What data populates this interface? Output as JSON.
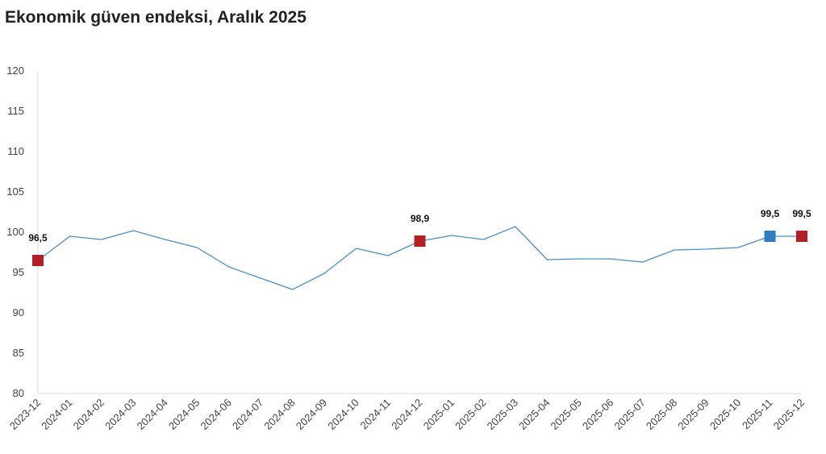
{
  "chart_data": {
    "type": "line",
    "title": "Ekonomik güven endeksi, Aralık 2025",
    "xlabel": "",
    "ylabel": "",
    "ylim": [
      80,
      120
    ],
    "yticks": [
      "80",
      "85",
      "90",
      "95",
      "100",
      "105",
      "110",
      "115",
      "120"
    ],
    "grid": false,
    "categories": [
      "2023-12",
      "2024-01",
      "2024-02",
      "2024-03",
      "2024-04",
      "2024-05",
      "2024-06",
      "2024-07",
      "2024-08",
      "2024-09",
      "2024-10",
      "2024-11",
      "2024-12",
      "2025-01",
      "2025-02",
      "2025-03",
      "2025-04",
      "2025-05",
      "2025-06",
      "2025-07",
      "2025-08",
      "2025-09",
      "2025-10",
      "2025-11",
      "2025-12"
    ],
    "series": [
      {
        "values": [
          96.5,
          99.5,
          99.1,
          100.2,
          99.1,
          98.1,
          95.7,
          94.3,
          92.9,
          94.9,
          98.0,
          97.1,
          98.9,
          99.6,
          99.1,
          100.7,
          96.6,
          96.7,
          96.7,
          96.3,
          97.8,
          97.9,
          98.1,
          99.5,
          99.5
        ],
        "color": "#4a90c8"
      }
    ],
    "highlighted_points": [
      {
        "category": "2023-12",
        "value": 96.5,
        "label": "96,5",
        "color": "#b22025"
      },
      {
        "category": "2024-12",
        "value": 98.9,
        "label": "98,9",
        "color": "#b22025"
      },
      {
        "category": "2025-11",
        "value": 99.5,
        "label": "99,5",
        "color": "#2f7cc0"
      },
      {
        "category": "2025-12",
        "value": 99.5,
        "label": "99,5",
        "color": "#b22025"
      }
    ]
  }
}
